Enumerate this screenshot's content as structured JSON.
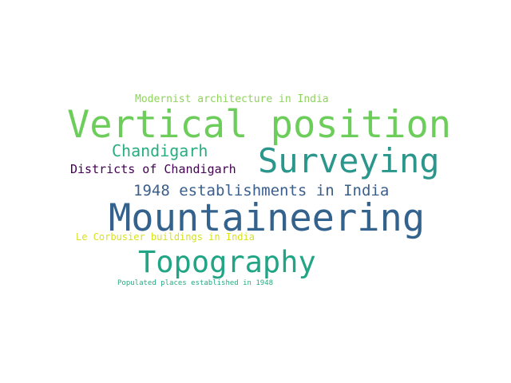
{
  "words": [
    {
      "text": "Modernist architecture in India",
      "color": "#8fd35d"
    },
    {
      "text": "Vertical position",
      "color": "#6ccd5a"
    },
    {
      "text": "Chandigarh",
      "color": "#27ad81"
    },
    {
      "text": "Surveying",
      "color": "#2a968c"
    },
    {
      "text": "Districts of Chandigarh",
      "color": "#440154"
    },
    {
      "text": "1948 establishments in India",
      "color": "#3b5e8b"
    },
    {
      "text": "Mountaineering",
      "color": "#33628d"
    },
    {
      "text": "Le Corbusier buildings in India",
      "color": "#d8e219"
    },
    {
      "text": "Topography",
      "color": "#21a585"
    },
    {
      "text": "Populated places established in 1948",
      "color": "#25ac82"
    }
  ]
}
